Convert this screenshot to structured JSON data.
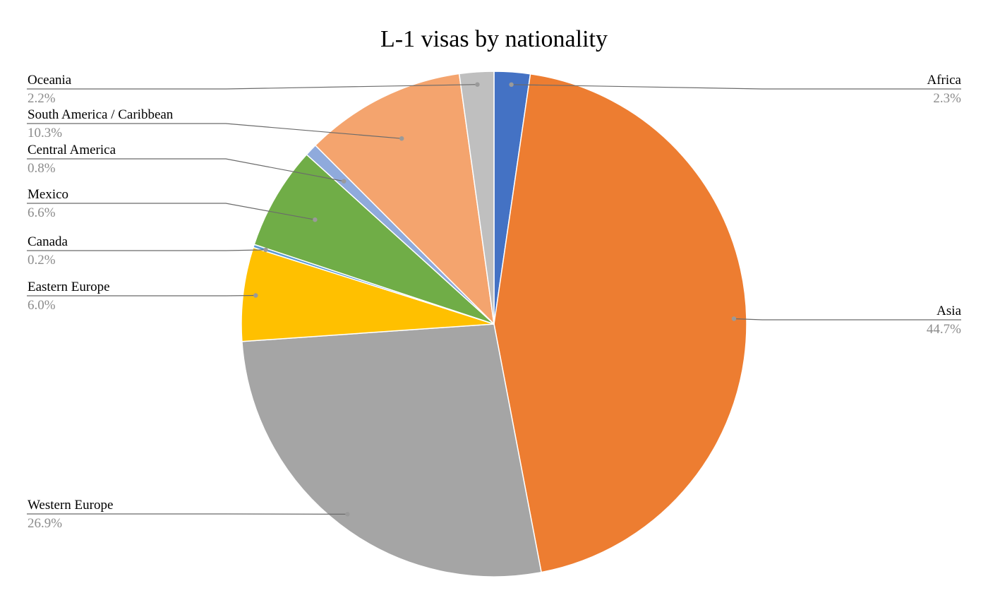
{
  "chart_data": {
    "type": "pie",
    "title": "L-1 visas by nationality",
    "slices": [
      {
        "label": "Africa",
        "value": 2.3,
        "pct_label": "2.3%",
        "color": "#4472c4"
      },
      {
        "label": "Asia",
        "value": 44.7,
        "pct_label": "44.7%",
        "color": "#ed7d31"
      },
      {
        "label": "Western Europe",
        "value": 26.9,
        "pct_label": "26.9%",
        "color": "#a5a5a5"
      },
      {
        "label": "Eastern Europe",
        "value": 6.0,
        "pct_label": "6.0%",
        "color": "#ffc000"
      },
      {
        "label": "Canada",
        "value": 0.2,
        "pct_label": "0.2%",
        "color": "#5b9bd5"
      },
      {
        "label": "Mexico",
        "value": 6.6,
        "pct_label": "6.6%",
        "color": "#70ad47"
      },
      {
        "label": "Central America",
        "value": 0.8,
        "pct_label": "0.8%",
        "color": "#8faadc"
      },
      {
        "label": "South America / Caribbean",
        "value": 10.3,
        "pct_label": "10.3%",
        "color": "#f4a46e"
      },
      {
        "label": "Oceania",
        "value": 2.2,
        "pct_label": "2.2%",
        "color": "#bfbfbf"
      }
    ],
    "start_angle": "12 o'clock",
    "direction": "clockwise",
    "legend": "none (data labels with leader lines)"
  }
}
